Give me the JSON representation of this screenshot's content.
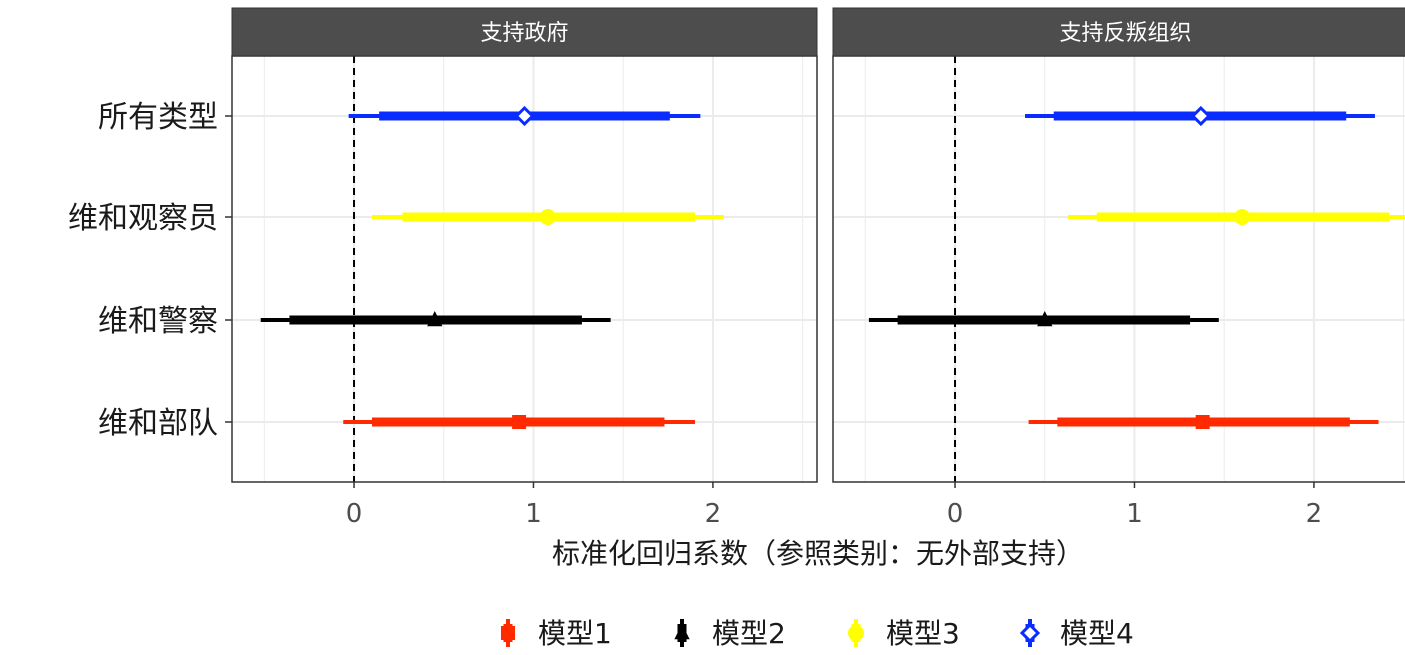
{
  "chart_data": {
    "type": "coefficient-plot",
    "xlabel": "标准化回归系数（参照类别：无外部支持）",
    "ylabel": "",
    "xlim": [
      -0.68,
      2.58
    ],
    "xticks": [
      0,
      1,
      2
    ],
    "reference_line": 0,
    "grid": true,
    "legend_position": "bottom",
    "categories": [
      "所有类型",
      "维和观察员",
      "维和警察",
      "维和部队"
    ],
    "colors": {
      "模型1": "#ff2a00",
      "模型2": "#000000",
      "模型3": "#ffff00",
      "模型4": "#0a2cff"
    },
    "panels": [
      {
        "title": "支持政府",
        "estimates": [
          {
            "category": "所有类型",
            "model": "模型4",
            "value": 0.95,
            "ci90": [
              0.14,
              1.76
            ],
            "ci95": [
              -0.03,
              1.93
            ]
          },
          {
            "category": "维和观察员",
            "model": "模型3",
            "value": 1.08,
            "ci90": [
              0.27,
              1.9
            ],
            "ci95": [
              0.1,
              2.06
            ]
          },
          {
            "category": "维和警察",
            "model": "模型2",
            "value": 0.45,
            "ci90": [
              -0.36,
              1.27
            ],
            "ci95": [
              -0.52,
              1.43
            ]
          },
          {
            "category": "维和部队",
            "model": "模型1",
            "value": 0.92,
            "ci90": [
              0.1,
              1.73
            ],
            "ci95": [
              -0.06,
              1.9
            ]
          }
        ]
      },
      {
        "title": "支持反叛组织",
        "estimates": [
          {
            "category": "所有类型",
            "model": "模型4",
            "value": 1.37,
            "ci90": [
              0.55,
              2.18
            ],
            "ci95": [
              0.39,
              2.34
            ]
          },
          {
            "category": "维和观察员",
            "model": "模型3",
            "value": 1.6,
            "ci90": [
              0.79,
              2.42
            ],
            "ci95": [
              0.63,
              2.58
            ]
          },
          {
            "category": "维和警察",
            "model": "模型2",
            "value": 0.5,
            "ci90": [
              -0.32,
              1.31
            ],
            "ci95": [
              -0.48,
              1.47
            ]
          },
          {
            "category": "维和部队",
            "model": "模型1",
            "value": 1.38,
            "ci90": [
              0.57,
              2.2
            ],
            "ci95": [
              0.41,
              2.36
            ]
          }
        ]
      }
    ],
    "legend": [
      {
        "label": "模型1",
        "shape": "square"
      },
      {
        "label": "模型2",
        "shape": "triangle"
      },
      {
        "label": "模型3",
        "shape": "circle"
      },
      {
        "label": "模型4",
        "shape": "diamond-open"
      }
    ]
  }
}
